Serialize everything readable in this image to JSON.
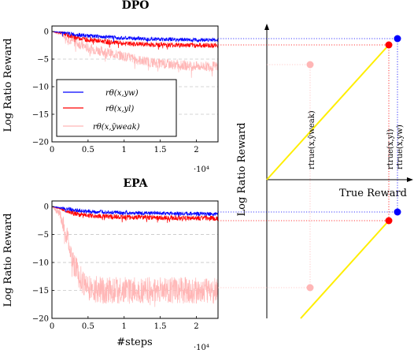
{
  "chart_data": [
    {
      "type": "line",
      "title": "DPO",
      "xlabel": "",
      "ylabel": "Log Ratio Reward",
      "xlim": [
        0,
        23000
      ],
      "ylim": [
        -20,
        1
      ],
      "xticks": [
        "0",
        "0.5",
        "1",
        "1.5",
        "2"
      ],
      "xtick_values": [
        0,
        5000,
        10000,
        15000,
        20000
      ],
      "x_exponent": "·10⁴",
      "yticks": [
        "0",
        "−5",
        "−10",
        "−15",
        "−20"
      ],
      "ytick_values": [
        0,
        -5,
        -10,
        -15,
        -20
      ],
      "grid": "dashed horizontal",
      "legend_position": "lower-left",
      "series": [
        {
          "name": "rθ(x,yw)",
          "color": "#0000ff",
          "x": [
            0,
            1500,
            2500,
            5000,
            10000,
            15000,
            20000,
            23000
          ],
          "values": [
            0,
            -0.2,
            -0.4,
            -0.8,
            -1.2,
            -1.4,
            -1.5,
            -1.5
          ]
        },
        {
          "name": "rθ(x,yl)",
          "color": "#ff0000",
          "x": [
            0,
            1500,
            2500,
            5000,
            10000,
            15000,
            20000,
            23000
          ],
          "values": [
            0,
            -0.3,
            -0.8,
            -1.5,
            -2.2,
            -2.4,
            -2.5,
            -2.5
          ]
        },
        {
          "name": "rθ(x,ȳweak)",
          "color": "#ffb6b6",
          "x": [
            0,
            1500,
            2500,
            5000,
            10000,
            12500,
            15000,
            20000,
            23000
          ],
          "values": [
            0,
            -0.5,
            -1.5,
            -3,
            -4.5,
            -5.3,
            -5.8,
            -6.3,
            -6.3
          ]
        }
      ]
    },
    {
      "type": "line",
      "title": "EPA",
      "xlabel": "#steps",
      "ylabel": "Log Ratio Reward",
      "xlim": [
        0,
        23000
      ],
      "ylim": [
        -20,
        1
      ],
      "xticks": [
        "0",
        "0.5",
        "1",
        "1.5",
        "2"
      ],
      "xtick_values": [
        0,
        5000,
        10000,
        15000,
        20000
      ],
      "x_exponent": "·10⁴",
      "yticks": [
        "0",
        "−5",
        "−10",
        "−15",
        "−20"
      ],
      "ytick_values": [
        0,
        -5,
        -10,
        -15,
        -20
      ],
      "grid": "dashed horizontal",
      "series": [
        {
          "name": "rθ(x,yw)",
          "color": "#0000ff",
          "x": [
            0,
            1500,
            3000,
            5000,
            10000,
            15000,
            20000,
            23000
          ],
          "values": [
            0,
            -0.3,
            -0.6,
            -0.9,
            -1.1,
            -1.2,
            -1.3,
            -1.3
          ]
        },
        {
          "name": "rθ(x,yl)",
          "color": "#ff0000",
          "x": [
            0,
            1500,
            3000,
            5000,
            10000,
            15000,
            20000,
            23000
          ],
          "values": [
            0,
            -0.5,
            -1.2,
            -1.6,
            -1.9,
            -2.0,
            -2.1,
            -2.1
          ]
        },
        {
          "name": "rθ(x,ȳweak)",
          "color": "#ffb6b6",
          "x": [
            0,
            1000,
            2000,
            3000,
            4000,
            5000,
            7000,
            10000,
            15000,
            20000,
            23000
          ],
          "values": [
            0,
            -1,
            -5,
            -10,
            -13,
            -14.5,
            -15,
            -15,
            -15,
            -15,
            -15
          ]
        }
      ]
    },
    {
      "type": "diagram",
      "xlabel": "True Reward",
      "ylabel": "Log Ratio Reward",
      "point_labels": {
        "weak": "rtrue(x,ȳweak)",
        "yl": "rtrue(x,yl)",
        "yw": "rtrue(x,yw)"
      },
      "colors": {
        "yw": "#0000ff",
        "yl": "#ff0000",
        "weak": "#ffb6b6",
        "line": "#ffee00"
      }
    }
  ]
}
